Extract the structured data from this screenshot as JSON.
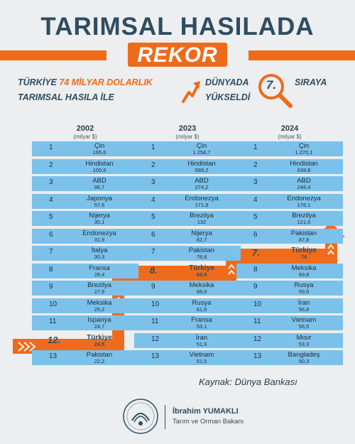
{
  "header": {
    "title_line1": "TARIMSAL HASILADA",
    "title_line2": "REKOR",
    "subtitle": {
      "part1_prefix": "TÜRKİYE ",
      "part1_highlight": "74 MİLYAR DOLARLIK",
      "part2": "TARIMSAL HASILA İLE",
      "part3": "DÜNYADA",
      "part4": "YÜKSELDİ",
      "rank_badge": "7.",
      "part5": "SIRAYA"
    }
  },
  "colors": {
    "navy": "#2f4d60",
    "orange": "#ee6b1c",
    "row_blue": "#7cc1ea",
    "background": "#eceeef"
  },
  "icons": [
    "rising-arrow-icon",
    "magnifier-icon",
    "ministry-seal-icon"
  ],
  "chart_data": {
    "type": "table",
    "unit": "(milyar $)",
    "columns": [
      {
        "year": "2002",
        "unit": "(milyar $)",
        "highlight_index": 11,
        "rows": [
          {
            "rank": "1",
            "country": "Çin",
            "value": "195,6"
          },
          {
            "rank": "2",
            "country": "Hindistan",
            "value": "100,6"
          },
          {
            "rank": "3",
            "country": "ABD",
            "value": "96,7"
          },
          {
            "rank": "4",
            "country": "Japonya",
            "value": "57,6"
          },
          {
            "rank": "5",
            "country": "Nijerya",
            "value": "35,1"
          },
          {
            "rank": "6",
            "country": "Endonezya",
            "value": "31,9"
          },
          {
            "rank": "7",
            "country": "İtalya",
            "value": "30,3"
          },
          {
            "rank": "8",
            "country": "Fransa",
            "value": "28,4"
          },
          {
            "rank": "9",
            "country": "Brezilya",
            "value": "27,9"
          },
          {
            "rank": "10",
            "country": "Meksika",
            "value": "25,2"
          },
          {
            "rank": "11",
            "country": "İspanya",
            "value": "24,7"
          },
          {
            "rank": "12.",
            "country": "Türkiye",
            "value": "24,5"
          },
          {
            "rank": "13",
            "country": "Pakistan",
            "value": "22,2"
          }
        ]
      },
      {
        "year": "2023",
        "unit": "(milyar $)",
        "highlight_index": 7,
        "rows": [
          {
            "rank": "1",
            "country": "Çin",
            "value": "1.258,7"
          },
          {
            "rank": "2",
            "country": "Hindistan",
            "value": "589,2"
          },
          {
            "rank": "3",
            "country": "ABD",
            "value": "274,2"
          },
          {
            "rank": "4",
            "country": "Endonezya",
            "value": "171,8"
          },
          {
            "rank": "5",
            "country": "Brezilya",
            "value": "132"
          },
          {
            "rank": "6",
            "country": "Nijerya",
            "value": "82,7"
          },
          {
            "rank": "7",
            "country": "Pakistan",
            "value": "78,8"
          },
          {
            "rank": "8.",
            "country": "Türkiye",
            "value": "68,9"
          },
          {
            "rank": "9",
            "country": "Meksika",
            "value": "68,8"
          },
          {
            "rank": "10",
            "country": "Rusya",
            "value": "61,6"
          },
          {
            "rank": "11",
            "country": "Fransa",
            "value": "53,1"
          },
          {
            "rank": "12",
            "country": "İran",
            "value": "51,9"
          },
          {
            "rank": "13",
            "country": "Vietnam",
            "value": "51,5"
          }
        ]
      },
      {
        "year": "2024",
        "unit": "(milyar $)",
        "highlight_index": 6,
        "rows": [
          {
            "rank": "1",
            "country": "Çin",
            "value": "1.270,1"
          },
          {
            "rank": "2",
            "country": "Hindistan",
            "value": "639,8"
          },
          {
            "rank": "3",
            "country": "ABD",
            "value": "248,4"
          },
          {
            "rank": "4",
            "country": "Endonezya",
            "value": "176,1"
          },
          {
            "rank": "5",
            "country": "Brezilya",
            "value": "121,6"
          },
          {
            "rank": "6",
            "country": "Pakistan",
            "value": "87,8"
          },
          {
            "rank": "7.",
            "country": "Türkiye",
            "value": "74"
          },
          {
            "rank": "8",
            "country": "Meksika",
            "value": "69,8"
          },
          {
            "rank": "9",
            "country": "Rusya",
            "value": "59,6"
          },
          {
            "rank": "10",
            "country": "İran",
            "value": "56,8"
          },
          {
            "rank": "11",
            "country": "Vietnam",
            "value": "56,5"
          },
          {
            "rank": "12",
            "country": "Mısır",
            "value": "53,3"
          },
          {
            "rank": "13",
            "country": "Bangladeş",
            "value": "50,3"
          }
        ]
      }
    ]
  },
  "footer": {
    "source": "Kaynak: Dünya Bankası",
    "minister_name": "İbrahim YUMAKLI",
    "minister_title": "Tarım ve Orman Bakanı"
  }
}
